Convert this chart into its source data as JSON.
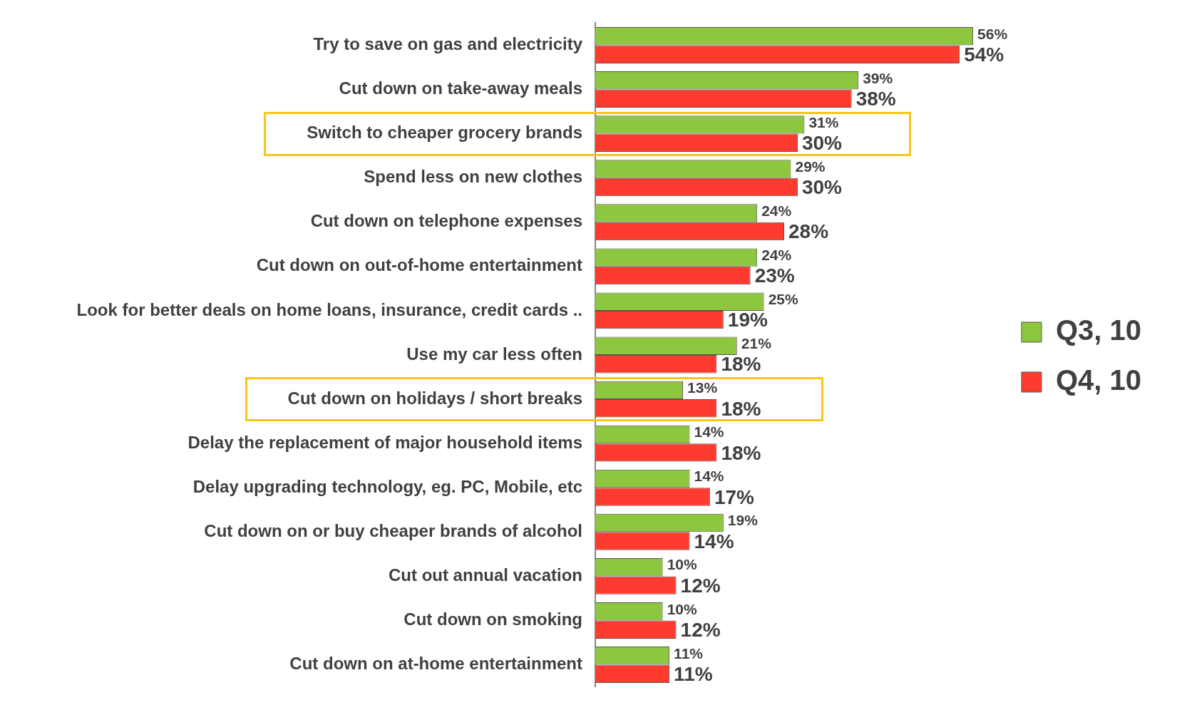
{
  "chart_data": {
    "type": "bar",
    "orientation": "horizontal",
    "legend": "right",
    "grid": false,
    "tick_labels": "y",
    "categories": [
      "Try to save on gas and electricity",
      "Cut down on take-away meals",
      "Switch to cheaper grocery brands",
      "Spend less on new clothes",
      "Cut down on telephone expenses",
      "Cut down on out-of-home entertainment",
      "Look for better deals on home loans, insurance, credit cards ..",
      "Use my car less often",
      "Cut down on holidays / short breaks",
      "Delay the replacement of major household items",
      "Delay upgrading technology, eg. PC, Mobile, etc",
      "Cut down on or buy cheaper brands of alcohol",
      "Cut out annual vacation",
      "Cut down on smoking",
      "Cut down on at-home entertainment"
    ],
    "series": [
      {
        "name": "Q3, 10",
        "color": "#8dc63f",
        "values": [
          56,
          39,
          31,
          29,
          24,
          24,
          25,
          21,
          13,
          14,
          14,
          19,
          10,
          10,
          11
        ],
        "value_labels": [
          "56%",
          "39%",
          "31%",
          "29%",
          "24%",
          "24%",
          "25%",
          "21%",
          "13%",
          "14%",
          "14%",
          "19%",
          "10%",
          "10%",
          "11%"
        ]
      },
      {
        "name": "Q4, 10",
        "color": "#ff3b30",
        "values": [
          54,
          38,
          30,
          30,
          28,
          23,
          19,
          18,
          18,
          18,
          17,
          14,
          12,
          12,
          11
        ],
        "value_labels": [
          "54%",
          "38%",
          "30%",
          "30%",
          "28%",
          "23%",
          "19%",
          "18%",
          "18%",
          "18%",
          "17%",
          "14%",
          "12%",
          "12%",
          "11%"
        ]
      }
    ]
  }
}
